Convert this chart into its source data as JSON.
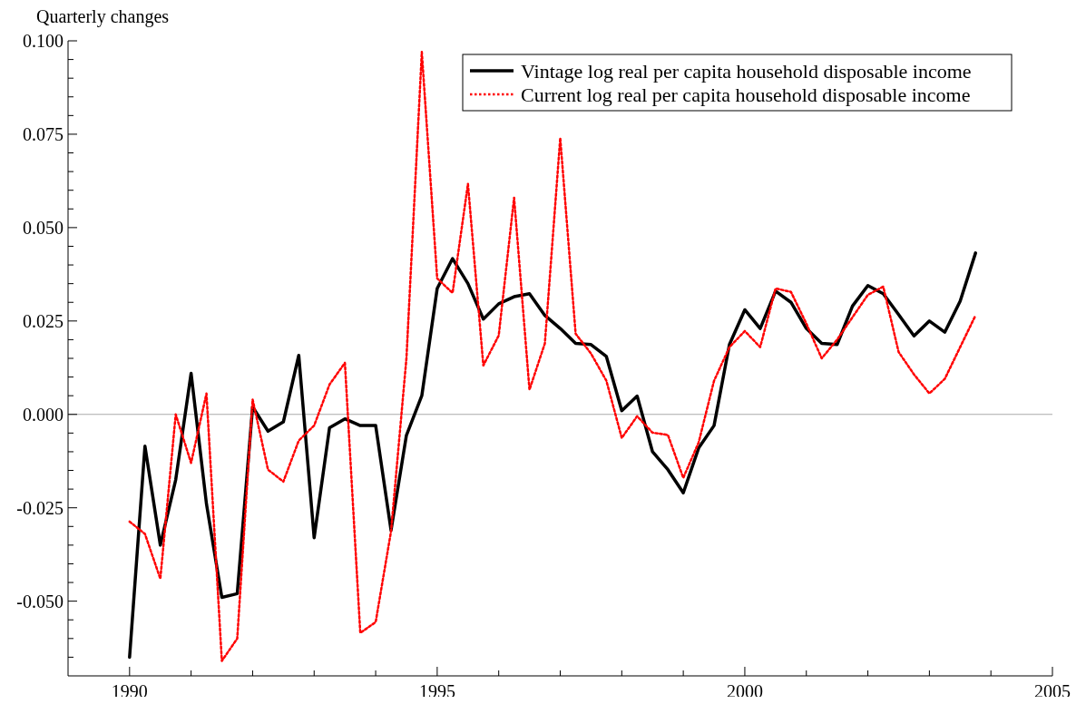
{
  "chart_data": {
    "type": "line",
    "ylabel": "Quarterly changes",
    "x": [
      1990,
      1990.25,
      1990.5,
      1990.75,
      1991,
      1991.25,
      1991.5,
      1991.75,
      1992,
      1992.25,
      1992.5,
      1992.75,
      1993,
      1993.25,
      1993.5,
      1993.75,
      1994,
      1994.25,
      1994.5,
      1994.75,
      1995,
      1995.25,
      1995.5,
      1995.75,
      1996,
      1996.25,
      1996.5,
      1996.75,
      1997,
      1997.25,
      1997.5,
      1997.75,
      1998,
      1998.25,
      1998.5,
      1998.75,
      1999,
      1999.25,
      1999.5,
      1999.75,
      2000,
      2000.25,
      2000.5,
      2000.75,
      2001,
      2001.25,
      2001.5,
      2001.75,
      2002,
      2002.25,
      2002.5,
      2002.75,
      2003,
      2003.25,
      2003.5,
      2003.75
    ],
    "series": [
      {
        "name": "Vintage log real per capita household disposable income",
        "color": "#000000",
        "line_style": "solid",
        "values": [
          -0.065,
          -0.0085,
          -0.035,
          -0.0175,
          0.011,
          -0.024,
          -0.049,
          -0.048,
          0.002,
          -0.0045,
          -0.002,
          0.0158,
          -0.033,
          -0.0036,
          -0.0012,
          -0.003,
          -0.003,
          -0.031,
          -0.0056,
          0.005,
          0.0337,
          0.0417,
          0.035,
          0.0255,
          0.0296,
          0.0315,
          0.0323,
          0.0265,
          0.023,
          0.019,
          0.0187,
          0.0155,
          0.001,
          0.0049,
          -0.01,
          -0.0148,
          -0.021,
          -0.009,
          -0.003,
          0.0187,
          0.028,
          0.023,
          0.033,
          0.03,
          0.023,
          0.019,
          0.0187,
          0.029,
          0.0345,
          0.0323,
          0.0267,
          0.021,
          0.025,
          0.022,
          0.0303,
          0.0432
        ]
      },
      {
        "name": "Current log real per capita household disposable income",
        "color": "#ff0000",
        "line_style": "dotted",
        "values": [
          -0.0287,
          -0.032,
          -0.044,
          0.0,
          -0.013,
          0.0056,
          -0.066,
          -0.06,
          0.004,
          -0.0148,
          -0.018,
          -0.007,
          -0.003,
          0.008,
          0.0138,
          -0.0585,
          -0.0556,
          -0.0313,
          0.015,
          0.097,
          0.0364,
          0.0325,
          0.0617,
          0.0131,
          0.0211,
          0.058,
          0.0066,
          0.019,
          0.074,
          0.0216,
          0.0163,
          0.009,
          -0.0063,
          -0.0005,
          -0.0049,
          -0.0055,
          -0.017,
          -0.0075,
          0.009,
          0.018,
          0.0223,
          0.018,
          0.0337,
          0.0328,
          0.0243,
          0.015,
          0.02,
          0.026,
          0.032,
          0.0342,
          0.0167,
          0.0107,
          0.0056,
          0.0095,
          0.018,
          0.0265
        ]
      }
    ],
    "xlim": [
      1989,
      2005
    ],
    "xticks": [
      1990,
      {
        "value": 1991,
        "label": null
      },
      {
        "value": 1992,
        "label": null
      },
      {
        "value": 1993,
        "label": null
      },
      {
        "value": 1994,
        "label": null
      },
      1995,
      {
        "value": 1996,
        "label": null
      },
      {
        "value": 1997,
        "label": null
      },
      {
        "value": 1998,
        "label": null
      },
      {
        "value": 1999,
        "label": null
      },
      2000,
      {
        "value": 2001,
        "label": null
      },
      {
        "value": 2002,
        "label": null
      },
      {
        "value": 2003,
        "label": null
      },
      {
        "value": 2004,
        "label": null
      },
      2005
    ],
    "ylim": [
      -0.07,
      0.1
    ],
    "yticks": [
      {
        "value": -0.065,
        "label": null
      },
      {
        "value": -0.06,
        "label": null
      },
      {
        "value": -0.055,
        "label": null
      },
      {
        "value": -0.05,
        "label": "-0.050"
      },
      {
        "value": -0.045,
        "label": null
      },
      {
        "value": -0.04,
        "label": null
      },
      {
        "value": -0.035,
        "label": null
      },
      {
        "value": -0.03,
        "label": null
      },
      {
        "value": -0.025,
        "label": "-0.025"
      },
      {
        "value": -0.02,
        "label": null
      },
      {
        "value": -0.015,
        "label": null
      },
      {
        "value": -0.01,
        "label": null
      },
      {
        "value": -0.005,
        "label": null
      },
      {
        "value": 0,
        "label": "0.000"
      },
      {
        "value": 0.005,
        "label": null
      },
      {
        "value": 0.01,
        "label": null
      },
      {
        "value": 0.015,
        "label": null
      },
      {
        "value": 0.02,
        "label": null
      },
      {
        "value": 0.025,
        "label": "0.025"
      },
      {
        "value": 0.03,
        "label": null
      },
      {
        "value": 0.035,
        "label": null
      },
      {
        "value": 0.04,
        "label": null
      },
      {
        "value": 0.045,
        "label": null
      },
      {
        "value": 0.05,
        "label": "0.050"
      },
      {
        "value": 0.055,
        "label": null
      },
      {
        "value": 0.06,
        "label": null
      },
      {
        "value": 0.065,
        "label": null
      },
      {
        "value": 0.07,
        "label": null
      },
      {
        "value": 0.075,
        "label": "0.075"
      },
      {
        "value": 0.08,
        "label": null
      },
      {
        "value": 0.085,
        "label": null
      },
      {
        "value": 0.09,
        "label": null
      },
      {
        "value": 0.095,
        "label": null
      },
      {
        "value": 0.1,
        "label": "0.100"
      }
    ],
    "ref_lines": [
      {
        "axis": "y",
        "value": 0,
        "color": "#aaaaaa"
      }
    ],
    "legend": "top right",
    "grid": false
  }
}
